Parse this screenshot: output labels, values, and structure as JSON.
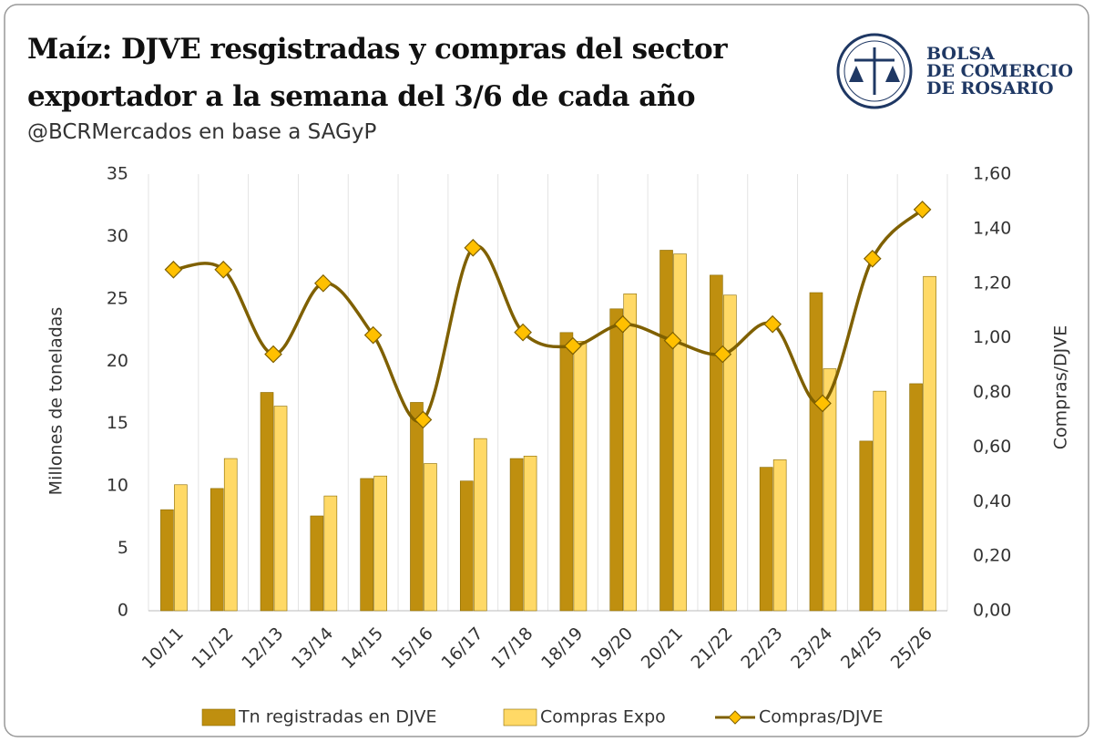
{
  "chart_data": {
    "type": "bar",
    "title": "Maíz: DJVE resgistradas y compras del sector exportador a la semana del 3/6 de cada año",
    "subtitle": "@BCRMercados en base a SAGyP",
    "logo": [
      "BOLSA",
      "DE COMERCIO",
      "DE ROSARIO"
    ],
    "y_label": "Millones de toneladas",
    "y2_label": "Compras/DJVE",
    "categories": [
      "10/11",
      "11/12",
      "12/13",
      "13/14",
      "14/15",
      "15/16",
      "16/17",
      "17/18",
      "18/19",
      "19/20",
      "20/21",
      "21/22",
      "22/23",
      "23/24",
      "24/25",
      "25/26"
    ],
    "series": [
      {
        "name": "Tn registradas en DJVE",
        "type": "bar",
        "color": "#bf8f0f",
        "values": [
          8.1,
          9.8,
          17.5,
          7.6,
          10.6,
          16.7,
          10.4,
          12.2,
          22.3,
          24.2,
          28.9,
          26.9,
          11.5,
          25.5,
          13.6,
          18.2
        ]
      },
      {
        "name": "Compras Expo",
        "type": "bar",
        "color": "#ffd966",
        "values": [
          10.1,
          12.2,
          16.4,
          9.2,
          10.8,
          11.8,
          13.8,
          12.4,
          21.6,
          25.4,
          28.6,
          25.3,
          12.1,
          19.4,
          17.6,
          26.8
        ]
      },
      {
        "name": "Compras/DJVE",
        "type": "line",
        "axis": "y2",
        "color": "#7f6000",
        "marker_color": "#ffc000",
        "values": [
          1.25,
          1.25,
          0.94,
          1.2,
          1.01,
          0.7,
          1.33,
          1.02,
          0.97,
          1.05,
          0.99,
          0.94,
          1.05,
          0.76,
          1.29,
          1.47
        ]
      }
    ],
    "ylim": [
      0,
      35
    ],
    "yticks": [
      0,
      5,
      10,
      15,
      20,
      25,
      30,
      35
    ],
    "y2lim": [
      0,
      1.6
    ],
    "y2ticks": [
      {
        "value": 0,
        "label": "0,00"
      },
      {
        "value": 0.2,
        "label": "0,20"
      },
      {
        "value": 0.4,
        "label": "0,40"
      },
      {
        "value": 0.6,
        "label": "0,60"
      },
      {
        "value": 0.8,
        "label": "0,80"
      },
      {
        "value": 1.0,
        "label": "1,00"
      },
      {
        "value": 1.2,
        "label": "1,20"
      },
      {
        "value": 1.4,
        "label": "1,40"
      },
      {
        "value": 1.6,
        "label": "1,60"
      }
    ],
    "legend": "bottom"
  }
}
